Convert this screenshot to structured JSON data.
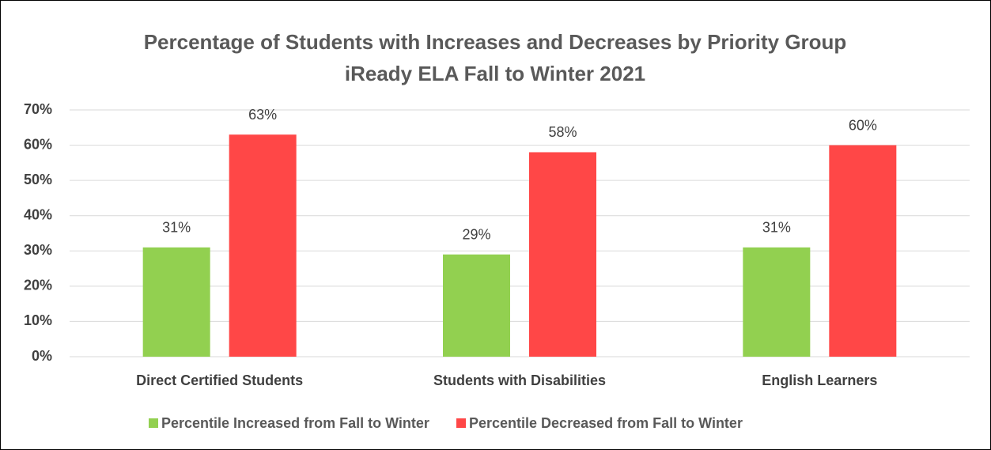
{
  "chart_data": {
    "type": "bar",
    "title": "Percentage of Students with Increases and Decreases by Priority Group",
    "subtitle": "iReady ELA Fall to Winter 2021",
    "categories": [
      "Direct Certified Students",
      "Students with Disabilities",
      "English Learners"
    ],
    "series": [
      {
        "name": "Percentile Increased from Fall to Winter",
        "color": "#92d050",
        "values": [
          31,
          29,
          31
        ],
        "value_labels": [
          "31%",
          "29%",
          "31%"
        ]
      },
      {
        "name": "Percentile Decreased from Fall to Winter",
        "color": "#ff4747",
        "values": [
          63,
          58,
          60
        ],
        "value_labels": [
          "63%",
          "58%",
          "60%"
        ]
      }
    ],
    "ylim": [
      0,
      70
    ],
    "yticks": [
      {
        "value": 0,
        "label": "0%"
      },
      {
        "value": 10,
        "label": "10%"
      },
      {
        "value": 20,
        "label": "20%"
      },
      {
        "value": 30,
        "label": "30%"
      },
      {
        "value": 40,
        "label": "40%"
      },
      {
        "value": 50,
        "label": "50%"
      },
      {
        "value": 60,
        "label": "60%"
      },
      {
        "value": 70,
        "label": "70%"
      }
    ],
    "grid": true,
    "legend": "bottom"
  }
}
